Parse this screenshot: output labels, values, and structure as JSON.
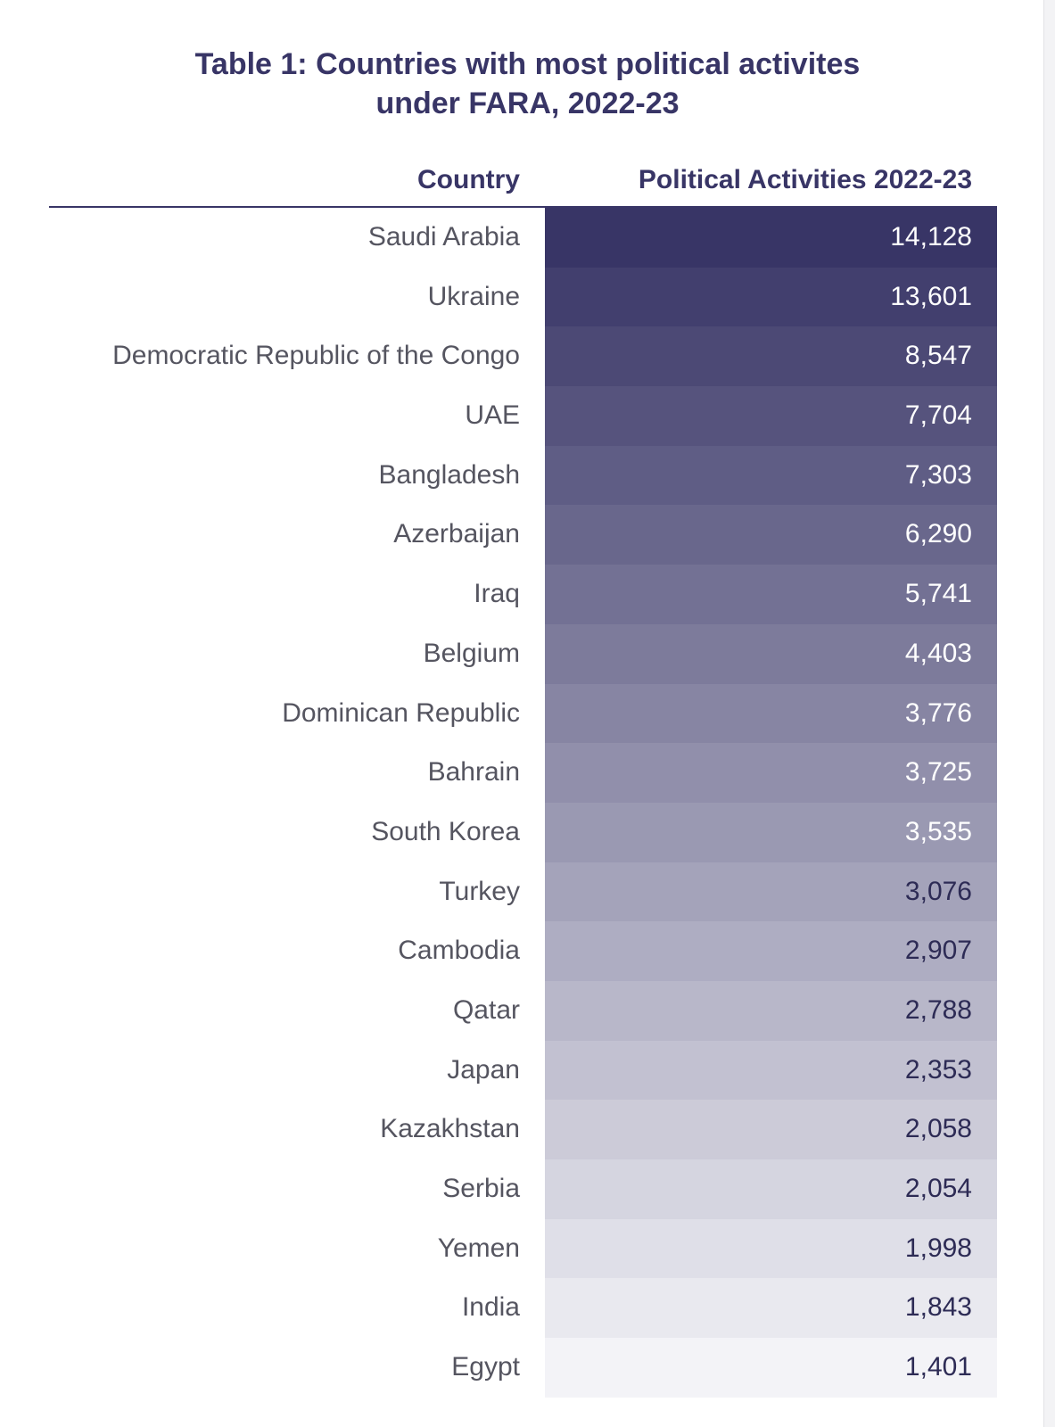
{
  "title_lines": [
    "Table 1: Countries with most political activites",
    "under FARA, 2022-23"
  ],
  "chart_data": {
    "type": "table",
    "title": "Table 1: Countries with most political activites under FARA, 2022-23",
    "columns": [
      "Country",
      "Political Activities 2022-23"
    ],
    "rows": [
      {
        "country": "Saudi Arabia",
        "value": 14128,
        "label": "14,128"
      },
      {
        "country": "Ukraine",
        "value": 13601,
        "label": "13,601"
      },
      {
        "country": "Democratic Republic of the Congo",
        "value": 8547,
        "label": "8,547"
      },
      {
        "country": "UAE",
        "value": 7704,
        "label": "7,704"
      },
      {
        "country": "Bangladesh",
        "value": 7303,
        "label": "7,303"
      },
      {
        "country": "Azerbaijan",
        "value": 6290,
        "label": "6,290"
      },
      {
        "country": "Iraq",
        "value": 5741,
        "label": "5,741"
      },
      {
        "country": "Belgium",
        "value": 4403,
        "label": "4,403"
      },
      {
        "country": "Dominican Republic",
        "value": 3776,
        "label": "3,776"
      },
      {
        "country": "Bahrain",
        "value": 3725,
        "label": "3,725"
      },
      {
        "country": "South Korea",
        "value": 3535,
        "label": "3,535"
      },
      {
        "country": "Turkey",
        "value": 3076,
        "label": "3,076"
      },
      {
        "country": "Cambodia",
        "value": 2907,
        "label": "2,907"
      },
      {
        "country": "Qatar",
        "value": 2788,
        "label": "2,788"
      },
      {
        "country": "Japan",
        "value": 2353,
        "label": "2,353"
      },
      {
        "country": "Kazakhstan",
        "value": 2058,
        "label": "2,058"
      },
      {
        "country": "Serbia",
        "value": 2054,
        "label": "2,054"
      },
      {
        "country": "Yemen",
        "value": 1998,
        "label": "1,998"
      },
      {
        "country": "India",
        "value": 1843,
        "label": "1,843"
      },
      {
        "country": "Egypt",
        "value": 1401,
        "label": "1,401"
      }
    ],
    "color_scale": {
      "dark": "#383566",
      "light": "#f3f3f7"
    },
    "dark_text_color": "#ffffff",
    "light_text_color": "#2d2b55"
  }
}
